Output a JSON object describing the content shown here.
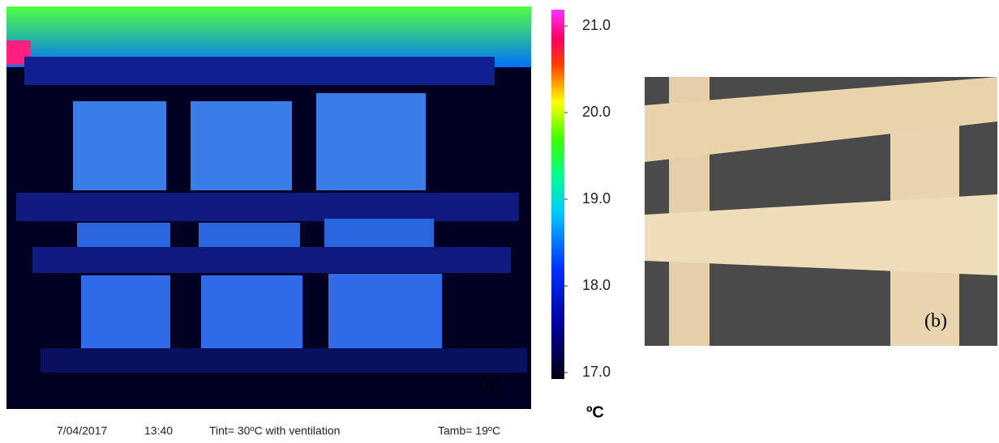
{
  "figure": {
    "panel_a": {
      "label": "(a)"
    },
    "colorbar": {
      "lim": [
        17,
        21
      ],
      "ticks": [
        {
          "value": 21,
          "label": "21.0"
        },
        {
          "value": 20,
          "label": "20.0"
        },
        {
          "value": 19,
          "label": "19.0"
        },
        {
          "value": 18,
          "label": "18.0"
        },
        {
          "value": 17,
          "label": "17.0"
        }
      ],
      "unit": "ºC"
    },
    "caption": {
      "date": "7/04/2017",
      "time": "13:40",
      "tint": "Tint= 30ºC with ventilation",
      "tamb": "Tamb= 19ºC"
    },
    "panel_b": {
      "label": "(b)"
    }
  }
}
